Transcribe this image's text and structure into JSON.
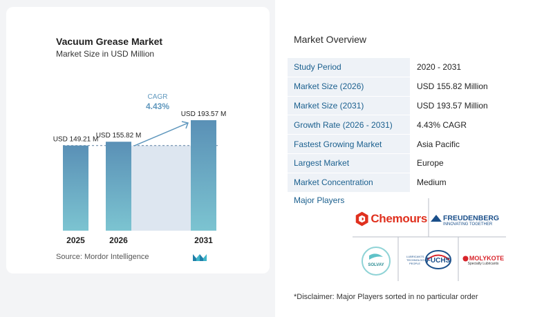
{
  "chart_data": {
    "type": "bar",
    "title": "Vacuum Grease Market",
    "subtitle": "Market Size in USD Million",
    "categories": [
      "2025",
      "2026",
      "2031"
    ],
    "values": [
      149.21,
      155.82,
      193.57
    ],
    "value_labels": [
      "USD 149.21 M",
      "USD 155.82 M",
      "USD 193.57 M"
    ],
    "cagr_label": "CAGR",
    "cagr_value": "4.43%",
    "source": "Source:  Mordor Intelligence",
    "colors": {
      "bar_top": "#5a90b6",
      "bar_bottom": "#7cc4d1",
      "shade": "#dde6f0",
      "arrow": "#5f97bd",
      "cagr_text": "#5f97bd"
    }
  },
  "overview": {
    "title": "Market Overview",
    "rows": [
      {
        "key": "Study Period",
        "value": "2020 - 2031"
      },
      {
        "key": "Market Size (2026)",
        "value": "USD 155.82 Million"
      },
      {
        "key": "Market Size (2031)",
        "value": "USD 193.57 Million"
      },
      {
        "key": "Growth Rate (2026 - 2031)",
        "value": "4.43% CAGR"
      },
      {
        "key": "Fastest Growing Market",
        "value": "Asia Pacific"
      },
      {
        "key": "Largest Market",
        "value": "Europe"
      },
      {
        "key": "Market Concentration",
        "value": "Medium"
      }
    ],
    "major_players_label": "Major Players",
    "players": {
      "chemours": "Chemours",
      "freudenberg": "FREUDENBERG",
      "freudenberg_tag": "INNOVATING TOGETHER",
      "solvay": "SOLVAY",
      "fuchs": "FUCHS",
      "fuchs_tag": "LUBRICANTS. TECHNOLOGY. PEOPLE",
      "molykote": "MOLYKOTE",
      "molykote_tag": "Specialty Lubricants"
    },
    "disclaimer": "*Disclaimer: Major Players sorted in no particular order"
  }
}
